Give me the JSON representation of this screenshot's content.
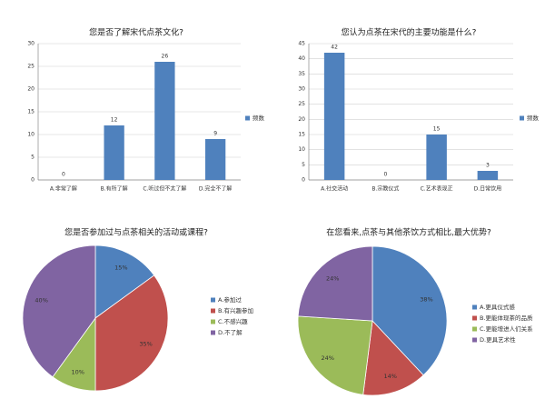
{
  "chart_data": [
    {
      "type": "bar",
      "title": "您是否了解宋代点茶文化?",
      "categories": [
        "A.非常了解",
        "B.有所了解",
        "C.听过但不太了解",
        "D.完全不了解"
      ],
      "series": [
        {
          "name": "频数",
          "color": "#4f81bd",
          "values": [
            0,
            12,
            26,
            9
          ]
        }
      ],
      "ylim": [
        0,
        30
      ],
      "yticks": [
        0,
        5,
        10,
        15,
        20,
        25,
        30
      ],
      "grid": true,
      "legend": "right"
    },
    {
      "type": "bar",
      "title": "您认为点茶在宋代的主要功能是什么?",
      "categories": [
        "A.社交活动",
        "B.宗教仪式",
        "C.艺术表现正",
        "D.日常饮用"
      ],
      "series": [
        {
          "name": "频数",
          "color": "#4f81bd",
          "values": [
            42,
            0,
            15,
            3
          ]
        }
      ],
      "ylim": [
        0,
        45
      ],
      "yticks": [
        0,
        5,
        10,
        15,
        20,
        25,
        30,
        35,
        40,
        45
      ],
      "grid": true,
      "legend": "right"
    },
    {
      "type": "pie",
      "title": "您是否参加过与点茶相关的活动或课程?",
      "categories": [
        "A.参加过",
        "B.有兴趣参加",
        "C.不感兴趣",
        "D.不了解"
      ],
      "values": [
        15,
        35,
        10,
        40
      ],
      "value_labels": [
        "15%",
        "35%",
        "10%",
        "40%"
      ],
      "colors": [
        "#4f81bd",
        "#c0504d",
        "#9bbb59",
        "#8064a2"
      ],
      "legend": "right"
    },
    {
      "type": "pie",
      "title": "在您看来,点茶与其他茶饮方式相比,最大优势?",
      "categories": [
        "A.更具仪式感",
        "B.更能体现茶的品质",
        "C.更能增进人们关系",
        "D.更具艺术性"
      ],
      "values": [
        38,
        14,
        24,
        24
      ],
      "value_labels": [
        "38%",
        "14%",
        "24%",
        "24%"
      ],
      "colors": [
        "#4f81bd",
        "#c0504d",
        "#9bbb59",
        "#8064a2"
      ],
      "legend": "right"
    }
  ]
}
